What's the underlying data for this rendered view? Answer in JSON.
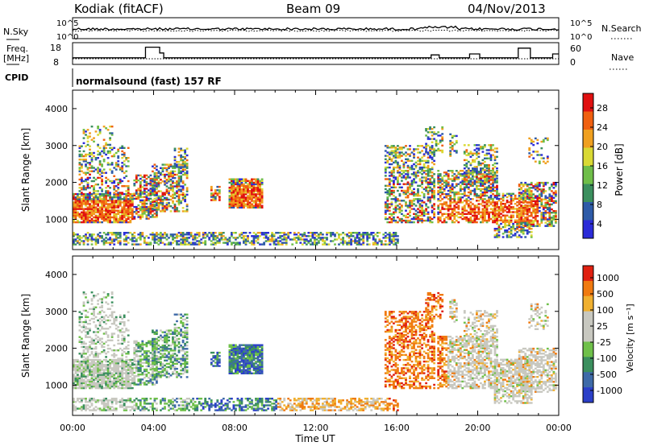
{
  "header": {
    "station": "Kodiak (fitACF)",
    "beam": "Beam 09",
    "date": "04/Nov/2013",
    "cpid_label": "CPID",
    "program": "normalsound (fast) 157 RF"
  },
  "params": {
    "nsky_label": "N.Sky",
    "nsearch_label": "N.Search",
    "nsky_ticks": [
      "10^5",
      "10^0"
    ],
    "freq_label_line1": "Freq.",
    "freq_label_line2": "[MHz]",
    "freq_ticks": [
      "18",
      "8"
    ],
    "nave_label": "Nave",
    "nave_ticks": [
      "60",
      "0"
    ]
  },
  "chart_data": [
    {
      "type": "heatmap",
      "name": "power",
      "ylabel": "Slant Range [km]",
      "yticks": [
        "4000",
        "3000",
        "2000",
        "1000"
      ],
      "ylim": [
        180,
        4500
      ],
      "colorbar_label": "Power [dB]",
      "colorbar_ticks": [
        "28",
        "24",
        "20",
        "16",
        "12",
        "8",
        "4"
      ],
      "colors": [
        "#2b2bd8",
        "#2e5ba8",
        "#3b8f5e",
        "#6fbe49",
        "#d9d934",
        "#f0a020",
        "#f06010",
        "#e01010"
      ],
      "xlim": [
        0,
        24
      ]
    },
    {
      "type": "heatmap",
      "name": "velocity",
      "ylabel": "Slant Range [km]",
      "yticks": [
        "4000",
        "3000",
        "2000",
        "1000"
      ],
      "ylim": [
        180,
        4500
      ],
      "colorbar_label": "Velocity [m s⁻¹]",
      "colorbar_ticks": [
        "1000",
        "500",
        "100",
        "25",
        "-25",
        "-100",
        "-500",
        "-1000"
      ],
      "colors": [
        "#2b3fc8",
        "#3e6aa8",
        "#3b8f5e",
        "#6fc04a",
        "#c8c8c0",
        "#c8c8c0",
        "#f0b030",
        "#f07a10",
        "#e02010"
      ],
      "xlim": [
        0,
        24
      ]
    }
  ],
  "time_axis": {
    "ticks": [
      "00:00",
      "04:00",
      "08:00",
      "12:00",
      "16:00",
      "20:00",
      "00:00"
    ],
    "label": "Time UT"
  }
}
